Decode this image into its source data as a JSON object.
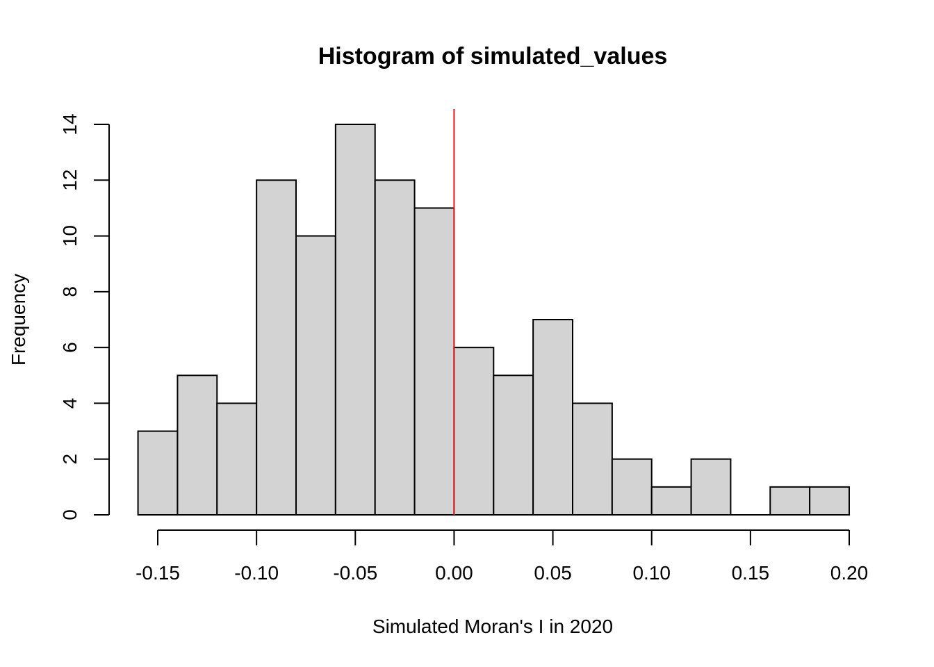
{
  "chart_data": {
    "type": "bar",
    "title": "Histogram of simulated_values",
    "xlabel": "Simulated Moran's I in 2020",
    "ylabel": "Frequency",
    "bin_edges": [
      -0.16,
      -0.14,
      -0.12,
      -0.1,
      -0.08,
      -0.06,
      -0.04,
      -0.02,
      0.0,
      0.02,
      0.04,
      0.06,
      0.08,
      0.1,
      0.12,
      0.14,
      0.16,
      0.18,
      0.2
    ],
    "values": [
      3,
      5,
      4,
      12,
      10,
      14,
      12,
      11,
      6,
      5,
      7,
      4,
      2,
      1,
      2,
      0,
      1,
      1
    ],
    "xlim": [
      -0.15,
      0.2
    ],
    "ylim": [
      0,
      14
    ],
    "x_ticks": [
      "-0.15",
      "-0.10",
      "-0.05",
      "0.00",
      "0.05",
      "0.10",
      "0.15",
      "0.20"
    ],
    "x_tick_values": [
      -0.15,
      -0.1,
      -0.05,
      0.0,
      0.05,
      0.1,
      0.15,
      0.2
    ],
    "y_ticks": [
      "0",
      "2",
      "4",
      "6",
      "8",
      "10",
      "12",
      "14"
    ],
    "y_tick_values": [
      0,
      2,
      4,
      6,
      8,
      10,
      12,
      14
    ],
    "reference_line": {
      "x": 0.0,
      "color": "#e31a1c"
    },
    "bar_fill": "#d3d3d3",
    "grid": false
  }
}
